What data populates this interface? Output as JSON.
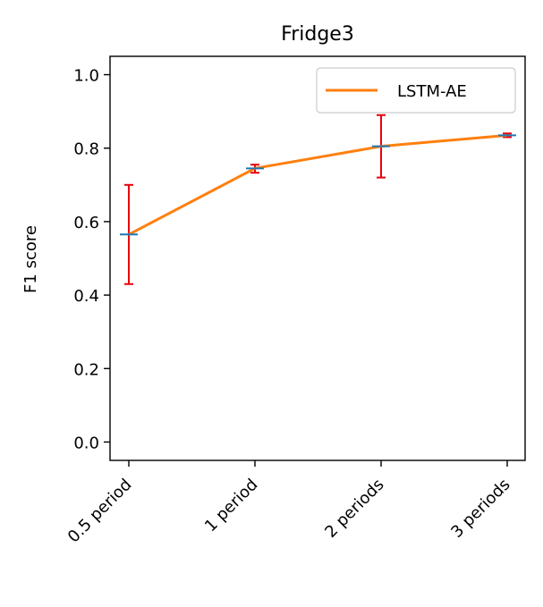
{
  "chart_data": {
    "type": "line",
    "title": "Fridge3",
    "xlabel": "",
    "ylabel": "F1 score",
    "categories": [
      "0.5 period",
      "1 period",
      "2 periods",
      "3 periods"
    ],
    "series": [
      {
        "name": "LSTM-AE",
        "values": [
          0.565,
          0.745,
          0.805,
          0.835
        ],
        "error_low": [
          0.43,
          0.733,
          0.72,
          0.83
        ],
        "error_high": [
          0.7,
          0.755,
          0.89,
          0.84
        ],
        "color": "#ff7f0e",
        "marker_color": "#1f77b4",
        "error_color": "#e8000b"
      }
    ],
    "ylim": [
      -0.05,
      1.05
    ],
    "yticks": [
      0.0,
      0.2,
      0.4,
      0.6,
      0.8,
      1.0
    ],
    "ytick_labels": [
      "0.0",
      "0.2",
      "0.4",
      "0.6",
      "0.8",
      "1.0"
    ],
    "grid": false,
    "legend_position": "upper right"
  }
}
